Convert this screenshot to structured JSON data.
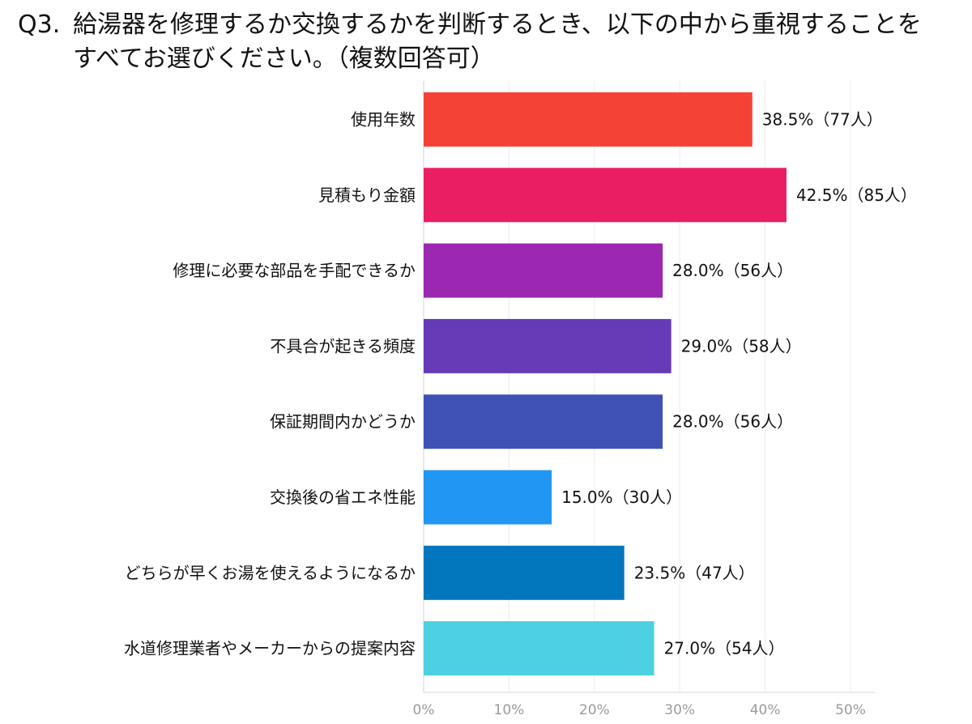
{
  "question": {
    "number": "Q3.",
    "line1": "給湯器を修理するか交換するかを判断するとき、以下の中から重視することを",
    "line2": "すべてお選びください。（複数回答可）"
  },
  "chart_data": {
    "type": "bar",
    "orientation": "horizontal",
    "categories": [
      "使用年数",
      "見積もり金額",
      "修理に必要な部品を手配できるか",
      "不具合が起きる頻度",
      "保証期間内かどうか",
      "交換後の省エネ性能",
      "どちらが早くお湯を使えるようになるか",
      "水道修理業者やメーカーからの提案内容"
    ],
    "values": [
      38.5,
      42.5,
      28.0,
      29.0,
      28.0,
      15.0,
      23.5,
      27.0
    ],
    "value_labels": [
      "38.5%（77人）",
      "42.5%（85人）",
      "28.0%（56人）",
      "29.0%（58人）",
      "28.0%（56人）",
      "15.0%（30人）",
      "23.5%（47人）",
      "27.0%（54人）"
    ],
    "colors": [
      "#f44336",
      "#e91e63",
      "#9c27b0",
      "#673ab7",
      "#3f51b5",
      "#2196f3",
      "#0277bd",
      "#4dd0e1"
    ],
    "xlim": [
      0,
      50
    ],
    "xticks": [
      0,
      10,
      20,
      30,
      40,
      50
    ],
    "xtick_labels": [
      "0%",
      "10%",
      "20%",
      "30%",
      "40%",
      "50%"
    ],
    "grid": true
  }
}
